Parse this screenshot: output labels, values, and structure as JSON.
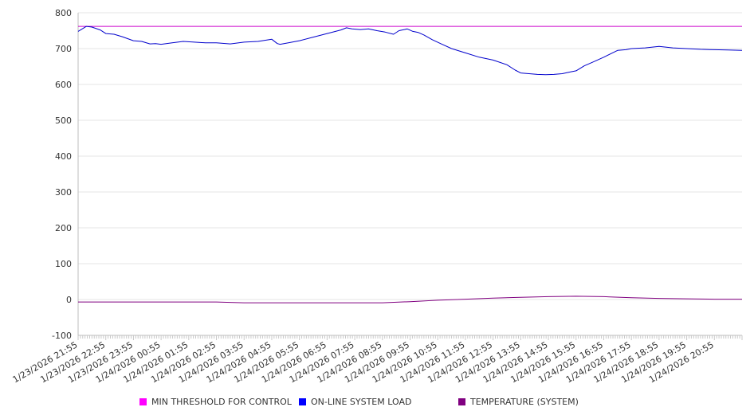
{
  "chart_data": {
    "type": "line",
    "title": "",
    "xlabel": "",
    "ylabel": "",
    "ylim": [
      -100,
      800
    ],
    "yticks": [
      -100,
      0,
      100,
      200,
      300,
      400,
      500,
      600,
      700,
      800
    ],
    "grid": true,
    "legend_position": "bottom-center",
    "categories": [
      "1/23/2026 21:55",
      "1/23/2026 22:55",
      "1/23/2026 23:55",
      "1/24/2026 00:55",
      "1/24/2026 01:55",
      "1/24/2026 02:55",
      "1/24/2026 03:55",
      "1/24/2026 04:55",
      "1/24/2026 05:55",
      "1/24/2026 06:55",
      "1/24/2026 07:55",
      "1/24/2026 08:55",
      "1/24/2026 09:55",
      "1/24/2026 10:55",
      "1/24/2026 11:55",
      "1/24/2026 12:55",
      "1/24/2026 13:55",
      "1/24/2026 14:55",
      "1/24/2026 15:55",
      "1/24/2026 16:55",
      "1/24/2026 17:55",
      "1/24/2026 18:55",
      "1/24/2026 19:55",
      "1/24/2026 20:55"
    ],
    "series": [
      {
        "name": "MIN THRESHOLD FOR CONTROL",
        "color": "#cc00cc",
        "x": [
          0,
          24
        ],
        "values": [
          762,
          762
        ]
      },
      {
        "name": "ON-LINE SYSTEM LOAD",
        "color": "#0000cc",
        "x": [
          0,
          0.3,
          0.5,
          0.8,
          1.0,
          1.3,
          1.6,
          2.0,
          2.3,
          2.6,
          2.8,
          3.0,
          3.4,
          3.8,
          4.2,
          4.6,
          5.0,
          5.5,
          6.0,
          6.5,
          7.0,
          7.2,
          7.3,
          7.6,
          8.0,
          8.5,
          9.0,
          9.5,
          9.7,
          9.9,
          10.2,
          10.5,
          10.8,
          11.1,
          11.4,
          11.6,
          11.9,
          12.1,
          12.3,
          12.5,
          12.8,
          13.1,
          13.5,
          14.0,
          14.5,
          15.0,
          15.5,
          15.8,
          16.0,
          16.3,
          16.6,
          16.9,
          17.2,
          17.5,
          17.8,
          18.0,
          18.3,
          18.6,
          19.0,
          19.5,
          19.8,
          20.0,
          20.5,
          21.0,
          21.5,
          22.0,
          22.5,
          23.0,
          23.5,
          24.0
        ],
        "values": [
          748,
          762,
          760,
          752,
          742,
          740,
          733,
          722,
          720,
          713,
          714,
          712,
          716,
          720,
          718,
          716,
          716,
          713,
          718,
          720,
          726,
          714,
          712,
          716,
          722,
          732,
          742,
          752,
          758,
          755,
          753,
          755,
          750,
          746,
          740,
          750,
          755,
          748,
          745,
          738,
          725,
          714,
          700,
          688,
          676,
          668,
          655,
          640,
          632,
          630,
          628,
          627,
          628,
          630,
          635,
          638,
          652,
          662,
          676,
          695,
          697,
          700,
          702,
          706,
          702,
          700,
          698,
          697,
          696,
          695
        ]
      },
      {
        "name": "TEMPERATURE (SYSTEM)",
        "color": "#800080",
        "x": [
          0,
          2,
          4,
          5,
          6,
          8,
          10,
          11,
          12,
          13,
          14,
          15,
          16,
          17,
          18,
          19,
          20,
          21,
          22,
          23,
          24
        ],
        "values": [
          -7,
          -7,
          -7,
          -7,
          -9,
          -9,
          -9,
          -9,
          -6,
          -2,
          1,
          4,
          6,
          8,
          9,
          8,
          5,
          3,
          2,
          1,
          1
        ]
      }
    ]
  }
}
